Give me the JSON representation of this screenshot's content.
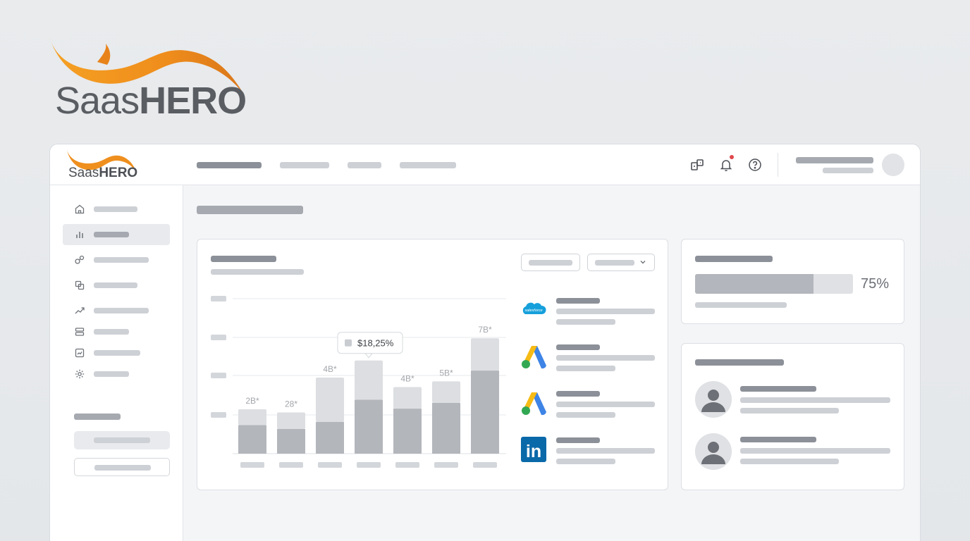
{
  "brand": {
    "name_part1": "Saas",
    "name_part2": "HERO",
    "accent_color": "#f0921f"
  },
  "header": {
    "icons": [
      "integrations-icon",
      "bell-icon",
      "help-icon"
    ],
    "has_notification": true
  },
  "sidebar": {
    "active_index": 1,
    "items": [
      {
        "icon": "home-icon"
      },
      {
        "icon": "bar-chart-icon"
      },
      {
        "icon": "link-icon"
      },
      {
        "icon": "copy-icon"
      },
      {
        "icon": "trend-icon"
      },
      {
        "icon": "list-icon"
      },
      {
        "icon": "report-icon"
      },
      {
        "icon": "gear-icon"
      }
    ]
  },
  "chart_data": {
    "type": "bar",
    "stacked": true,
    "categories": [
      "",
      "",
      "",
      "",
      "",
      "",
      ""
    ],
    "series": [
      {
        "values": [
          45,
          39,
          50,
          85,
          71,
          80,
          131
        ]
      },
      {
        "values": [
          25,
          26,
          70,
          62,
          34,
          34,
          51
        ]
      }
    ],
    "data_labels": [
      "2B*",
      "28*",
      "4B*",
      "",
      "4B*",
      "5B*",
      "7B*"
    ],
    "tooltip": {
      "text": "$18,25%",
      "bar_index": 3
    },
    "grid": true
  },
  "integrations": [
    {
      "name": "salesforce",
      "icon": "salesforce-icon",
      "label": "salesforce"
    },
    {
      "name": "google-ads",
      "icon": "google-ads-icon"
    },
    {
      "name": "google-ads-2",
      "icon": "google-ads-icon"
    },
    {
      "name": "linkedin",
      "icon": "linkedin-icon",
      "label": "in"
    }
  ],
  "progress": {
    "value": 0.75,
    "label": "75%"
  },
  "people": [
    {
      "icon": "user-avatar-icon"
    },
    {
      "icon": "user-avatar-icon"
    }
  ]
}
